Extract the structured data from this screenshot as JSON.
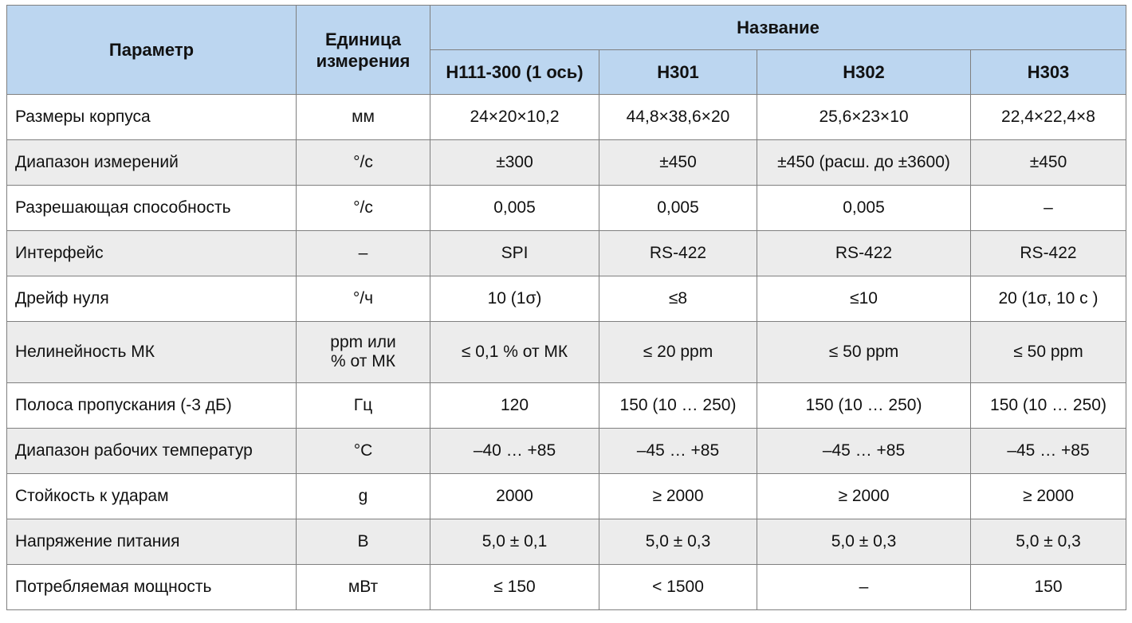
{
  "header": {
    "parameter": "Параметр",
    "unit_line1": "Единица",
    "unit_line2": "измерения",
    "name_group": "Название",
    "models": [
      "H111-300 (1 ось)",
      "H301",
      "H302",
      "H303"
    ]
  },
  "rows": [
    {
      "param": "Размеры корпуса",
      "unit": "мм",
      "values": [
        "24×20×10,2",
        "44,8×38,6×20",
        "25,6×23×10",
        "22,4×22,4×8"
      ]
    },
    {
      "param": "Диапазон измерений",
      "unit": "°/с",
      "values": [
        "±300",
        "±450",
        "±450 (расш. до ±3600)",
        "±450"
      ]
    },
    {
      "param": "Разрешающая способность",
      "unit": "°/с",
      "values": [
        "0,005",
        "0,005",
        "0,005",
        "–"
      ]
    },
    {
      "param": "Интерфейс",
      "unit": "–",
      "values": [
        "SPI",
        "RS-422",
        "RS-422",
        "RS-422"
      ]
    },
    {
      "param": "Дрейф нуля",
      "unit": "°/ч",
      "values": [
        "10 (1σ)",
        "≤8",
        "≤10",
        "20 (1σ, 10 с )"
      ]
    },
    {
      "param": "Нелинейность МК",
      "unit_line1": "ppm или",
      "unit_line2": "% от МК",
      "values": [
        "≤ 0,1 % от МК",
        "≤ 20 ppm",
        "≤ 50 ppm",
        "≤ 50 ppm"
      ]
    },
    {
      "param": "Полоса пропускания (-3 дБ)",
      "unit": "Гц",
      "values": [
        "120",
        "150  (10 … 250)",
        "150  (10 … 250)",
        "150  (10 … 250)"
      ]
    },
    {
      "param": "Диапазон рабочих температур",
      "unit": "°С",
      "values": [
        "–40 … +85",
        "–45 … +85",
        "–45 … +85",
        "–45 … +85"
      ]
    },
    {
      "param": "Стойкость к ударам",
      "unit": "g",
      "values": [
        "2000",
        "≥ 2000",
        "≥ 2000",
        "≥ 2000"
      ]
    },
    {
      "param": "Напряжение питания",
      "unit": "В",
      "values": [
        "5,0 ± 0,1",
        "5,0 ± 0,3",
        "5,0 ± 0,3",
        "5,0 ± 0,3"
      ]
    },
    {
      "param": "Потребляемая мощность",
      "unit": "мВт",
      "values": [
        "≤ 150",
        "< 1500",
        "–",
        "150"
      ]
    }
  ]
}
